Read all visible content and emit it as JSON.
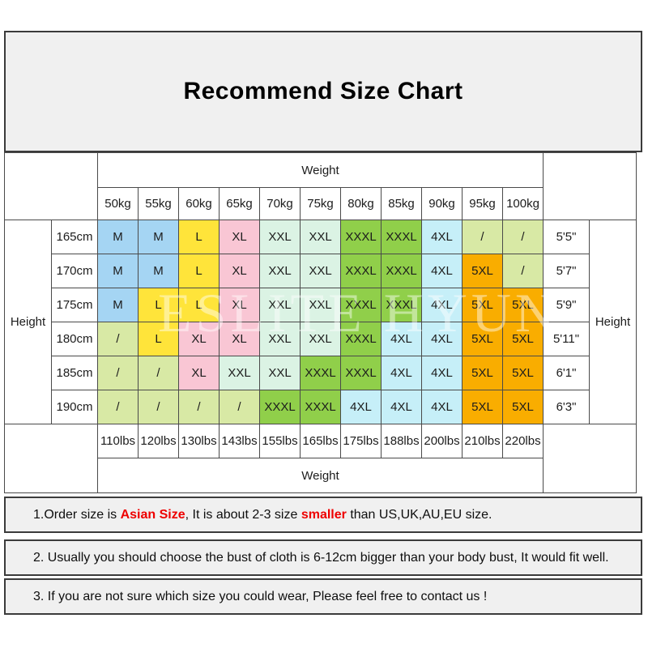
{
  "title": "Recommend Size Chart",
  "table": {
    "weight_label_top": "Weight",
    "weight_label_bottom": "Weight",
    "height_label_left": "Height",
    "height_label_right": "Height",
    "kg_labels": [
      "50kg",
      "55kg",
      "60kg",
      "65kg",
      "70kg",
      "75kg",
      "80kg",
      "85kg",
      "90kg",
      "95kg",
      "100kg"
    ],
    "lbs_labels": [
      "110lbs",
      "120lbs",
      "130lbs",
      "143lbs",
      "155lbs",
      "165lbs",
      "175lbs",
      "188lbs",
      "200lbs",
      "210lbs",
      "220lbs"
    ],
    "rows": [
      {
        "cm": "165cm",
        "ft": "5'5\"",
        "sizes": [
          "M",
          "M",
          "L",
          "XL",
          "XXL",
          "XXL",
          "XXXL",
          "XXXL",
          "4XL",
          "/",
          "/"
        ]
      },
      {
        "cm": "170cm",
        "ft": "5'7\"",
        "sizes": [
          "M",
          "M",
          "L",
          "XL",
          "XXL",
          "XXL",
          "XXXL",
          "XXXL",
          "4XL",
          "5XL",
          "/"
        ]
      },
      {
        "cm": "175cm",
        "ft": "5'9\"",
        "sizes": [
          "M",
          "L",
          "L",
          "XL",
          "XXL",
          "XXL",
          "XXXL",
          "XXXL",
          "4XL",
          "5XL",
          "5XL"
        ]
      },
      {
        "cm": "180cm",
        "ft": "5'11\"",
        "sizes": [
          "/",
          "L",
          "XL",
          "XL",
          "XXL",
          "XXL",
          "XXXL",
          "4XL",
          "4XL",
          "5XL",
          "5XL"
        ]
      },
      {
        "cm": "185cm",
        "ft": "6'1\"",
        "sizes": [
          "/",
          "/",
          "XL",
          "XXL",
          "XXL",
          "XXXL",
          "XXXL",
          "4XL",
          "4XL",
          "5XL",
          "5XL"
        ]
      },
      {
        "cm": "190cm",
        "ft": "6'3\"",
        "sizes": [
          "/",
          "/",
          "/",
          "/",
          "XXXL",
          "XXXL",
          "4XL",
          "4XL",
          "4XL",
          "5XL",
          "5XL"
        ]
      }
    ]
  },
  "size_colors": {
    "M": "#a5d5f3",
    "L": "#ffe43a",
    "XL": "#f9c6d4",
    "XXL": "#dbf3e4",
    "XXXL": "#90cf4a",
    "4XL": "#c6eff8",
    "5XL": "#f9ad00",
    "/": "#d8e9a5"
  },
  "watermark": "ESLITE HYUN",
  "notes": [
    {
      "parts": [
        {
          "text": "1.Order size is ",
          "red": false
        },
        {
          "text": "Asian Size",
          "red": true
        },
        {
          "text": ", It is about 2-3 size ",
          "red": false
        },
        {
          "text": "smaller",
          "red": true
        },
        {
          "text": " than US,UK,AU,EU size.",
          "red": false
        }
      ]
    },
    {
      "parts": [
        {
          "text": "2. Usually you should choose the bust of cloth is 6-12cm bigger than your body bust, It would fit well.",
          "red": false
        }
      ]
    },
    {
      "parts": [
        {
          "text": "3. If you are not sure which size you could wear, Please feel free to contact us !",
          "red": false
        }
      ]
    }
  ]
}
